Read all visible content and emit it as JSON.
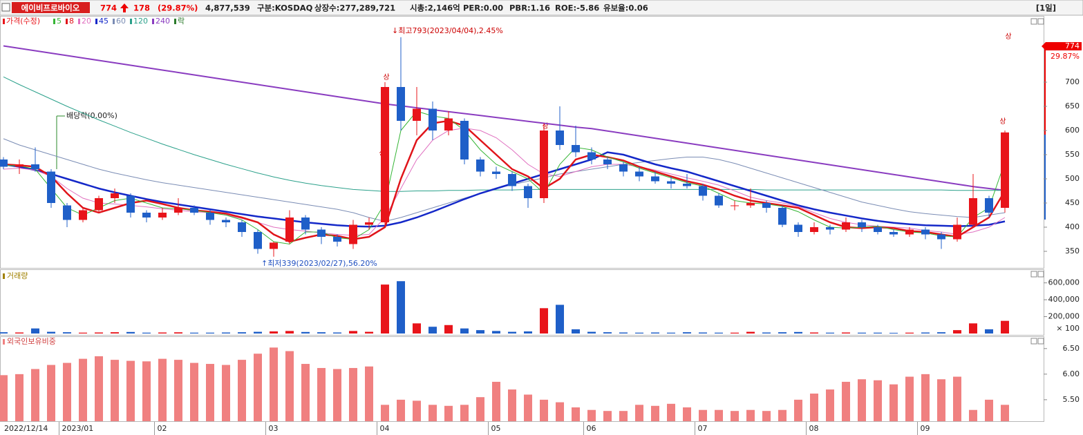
{
  "header": {
    "name": "에이비프로바이오",
    "price": "774",
    "change": "178",
    "change_pct": "(29.87%)",
    "volume": "4,877,539",
    "market": "구분:KOSDAQ",
    "shares": "상장수:277,289,721",
    "market_cap": "시총:2,146억",
    "per": "PER:0.00",
    "pbr": "PBR:1.16",
    "roe": "ROE:-5.86",
    "reserve": "유보율:0.06",
    "period": "[1일]"
  },
  "chart_data": [
    {
      "type": "candlestick",
      "legend_title": "가격(수정)",
      "ex_dividend_label": "락",
      "up_color": "#e8141a",
      "down_color": "#1f5fc8",
      "open": [
        540,
        525,
        530,
        515,
        445,
        415,
        435,
        460,
        465,
        430,
        420,
        430,
        440,
        430,
        415,
        410,
        390,
        355,
        370,
        420,
        395,
        380,
        365,
        405,
        410,
        690,
        620,
        645,
        600,
        620,
        540,
        515,
        510,
        485,
        460,
        600,
        570,
        555,
        540,
        530,
        515,
        505,
        495,
        490,
        485,
        465,
        445,
        445,
        450,
        440,
        405,
        390,
        400,
        395,
        410,
        400,
        390,
        385,
        395,
        385,
        375,
        405,
        460,
        440
      ],
      "high": [
        545,
        540,
        565,
        520,
        450,
        440,
        465,
        480,
        470,
        435,
        440,
        460,
        445,
        435,
        420,
        415,
        395,
        370,
        435,
        425,
        400,
        385,
        415,
        420,
        700,
        793,
        690,
        660,
        640,
        625,
        545,
        525,
        515,
        490,
        615,
        650,
        610,
        565,
        545,
        535,
        525,
        515,
        505,
        510,
        490,
        470,
        455,
        480,
        455,
        445,
        410,
        410,
        405,
        420,
        415,
        405,
        395,
        400,
        400,
        390,
        420,
        510,
        465,
        600
      ],
      "low": [
        520,
        510,
        515,
        440,
        400,
        410,
        430,
        450,
        420,
        410,
        415,
        425,
        425,
        405,
        400,
        380,
        345,
        339,
        365,
        385,
        365,
        360,
        355,
        395,
        405,
        600,
        590,
        580,
        590,
        530,
        505,
        500,
        475,
        440,
        450,
        560,
        545,
        530,
        520,
        505,
        495,
        490,
        480,
        480,
        455,
        440,
        435,
        440,
        430,
        400,
        380,
        385,
        385,
        390,
        390,
        385,
        380,
        380,
        375,
        355,
        370,
        400,
        420,
        430
      ],
      "close": [
        525,
        530,
        520,
        450,
        415,
        435,
        460,
        470,
        430,
        420,
        430,
        440,
        430,
        415,
        410,
        390,
        355,
        368,
        420,
        395,
        380,
        370,
        405,
        410,
        690,
        620,
        645,
        600,
        625,
        540,
        515,
        510,
        485,
        460,
        600,
        570,
        555,
        540,
        530,
        515,
        505,
        495,
        490,
        485,
        465,
        445,
        445,
        450,
        440,
        405,
        390,
        400,
        395,
        410,
        400,
        390,
        385,
        395,
        385,
        375,
        405,
        460,
        430,
        596
      ],
      "series": [
        {
          "name": "5",
          "color": "#35b535",
          "width": 1,
          "values": [
            528,
            527,
            520,
            480,
            440,
            425,
            440,
            455,
            460,
            450,
            440,
            438,
            435,
            430,
            425,
            415,
            395,
            370,
            365,
            390,
            390,
            378,
            375,
            395,
            450,
            600,
            640,
            630,
            625,
            600,
            560,
            530,
            515,
            500,
            470,
            530,
            565,
            560,
            545,
            535,
            522,
            512,
            502,
            492,
            485,
            470,
            455,
            450,
            448,
            443,
            432,
            415,
            400,
            398,
            400,
            402,
            395,
            390,
            388,
            382,
            380,
            420,
            440,
            535
          ]
        },
        {
          "name": "8",
          "color": "#e0141a",
          "width": 2.5,
          "values": [
            530,
            528,
            525,
            505,
            470,
            440,
            430,
            440,
            450,
            455,
            448,
            440,
            435,
            432,
            428,
            420,
            410,
            385,
            370,
            378,
            385,
            382,
            375,
            380,
            400,
            500,
            580,
            615,
            620,
            610,
            580,
            550,
            520,
            505,
            480,
            500,
            540,
            550,
            545,
            538,
            525,
            515,
            505,
            495,
            488,
            478,
            465,
            455,
            450,
            445,
            440,
            425,
            410,
            400,
            398,
            400,
            398,
            392,
            390,
            385,
            380,
            400,
            420,
            475
          ]
        },
        {
          "name": "20",
          "color": "#e070c0",
          "width": 1,
          "values": [
            520,
            522,
            518,
            505,
            480,
            460,
            450,
            448,
            445,
            442,
            438,
            435,
            432,
            430,
            425,
            418,
            410,
            400,
            395,
            392,
            388,
            385,
            383,
            385,
            420,
            480,
            540,
            580,
            600,
            605,
            600,
            585,
            560,
            530,
            510,
            505,
            515,
            525,
            530,
            530,
            525,
            518,
            510,
            502,
            495,
            487,
            475,
            462,
            455,
            450,
            443,
            430,
            418,
            410,
            405,
            402,
            400,
            398,
            393,
            390,
            385,
            390,
            400,
            420
          ]
        },
        {
          "name": "45",
          "color": "#1428c8",
          "width": 2.5,
          "values": [
            530,
            525,
            518,
            510,
            500,
            490,
            480,
            472,
            465,
            458,
            452,
            447,
            442,
            437,
            432,
            427,
            422,
            418,
            414,
            410,
            407,
            404,
            402,
            401,
            403,
            410,
            420,
            432,
            445,
            458,
            470,
            480,
            490,
            500,
            510,
            520,
            530,
            540,
            555,
            550,
            540,
            530,
            522,
            515,
            505,
            495,
            485,
            475,
            465,
            455,
            445,
            437,
            430,
            424,
            418,
            413,
            409,
            406,
            404,
            403,
            402,
            403,
            405,
            412
          ]
        },
        {
          "name": "60",
          "color": "#7a8cb4",
          "width": 1,
          "values": [
            583,
            570,
            560,
            550,
            540,
            530,
            520,
            512,
            505,
            498,
            492,
            487,
            482,
            477,
            472,
            467,
            462,
            457,
            452,
            447,
            442,
            437,
            430,
            420,
            412,
            420,
            430,
            440,
            450,
            460,
            470,
            480,
            488,
            495,
            502,
            510,
            515,
            520,
            525,
            530,
            534,
            538,
            542,
            545,
            545,
            540,
            532,
            522,
            512,
            502,
            492,
            482,
            472,
            462,
            452,
            445,
            438,
            432,
            428,
            425,
            422,
            420,
            425,
            430
          ]
        },
        {
          "name": "120",
          "color": "#2aa08a",
          "width": 1,
          "values": [
            711,
            695,
            680,
            665,
            650,
            636,
            622,
            609,
            596,
            584,
            572,
            561,
            550,
            540,
            530,
            521,
            512,
            504,
            497,
            491,
            486,
            482,
            478,
            476,
            474,
            474,
            475,
            475,
            476,
            476,
            477,
            477,
            477,
            478,
            478,
            478,
            478,
            478,
            478,
            478,
            478,
            478,
            478,
            478,
            478,
            478,
            478,
            478,
            477,
            477,
            477,
            477,
            477,
            477,
            477,
            477,
            477,
            477,
            477,
            477,
            476,
            476,
            476,
            476
          ]
        },
        {
          "name": "240",
          "color": "#8a3cc0",
          "width": 2,
          "values": [
            775,
            770,
            765,
            760,
            755,
            750,
            745,
            740,
            735,
            730,
            725,
            720,
            715,
            710,
            705,
            700,
            695,
            690,
            685,
            680,
            675,
            670,
            665,
            660,
            655,
            651,
            647,
            643,
            639,
            635,
            631,
            627,
            623,
            619,
            615,
            611,
            607,
            604,
            599,
            594,
            589,
            584,
            579,
            574,
            569,
            564,
            559,
            554,
            549,
            544,
            539,
            534,
            529,
            524,
            519,
            514,
            509,
            504,
            499,
            494,
            489,
            484,
            480,
            476
          ]
        }
      ],
      "ylim": [
        320,
        820
      ],
      "yticks": [
        350,
        400,
        450,
        500,
        550,
        600,
        650,
        700
      ],
      "annotations": [
        "↓최고793(2023/04/04),2.45%",
        "↑최저339(2023/02/27),56.20%",
        "배당락(0.00%)",
        "상",
        "상",
        "상",
        "상",
        "상"
      ],
      "price_tag": "774",
      "price_tag_pct": "29.87%"
    },
    {
      "type": "bar",
      "title": "거래량",
      "unit_label": "× 100",
      "values": [
        15000,
        12000,
        60000,
        20000,
        15000,
        10000,
        12000,
        15000,
        18000,
        10000,
        12000,
        14000,
        10000,
        10000,
        12000,
        15000,
        20000,
        25000,
        30000,
        18000,
        15000,
        12000,
        30000,
        20000,
        580000,
        620000,
        120000,
        80000,
        100000,
        60000,
        40000,
        30000,
        20000,
        25000,
        300000,
        340000,
        50000,
        20000,
        15000,
        12000,
        10000,
        12000,
        10000,
        15000,
        12000,
        10000,
        10000,
        20000,
        12000,
        15000,
        18000,
        12000,
        10000,
        12000,
        10000,
        10000,
        8000,
        10000,
        12000,
        15000,
        40000,
        120000,
        50000,
        150000
      ],
      "ylim": [
        0,
        720000
      ],
      "yticks": [
        {
          "value": 200000,
          "label": "200,000"
        },
        {
          "value": 400000,
          "label": "400,000"
        },
        {
          "value": 600000,
          "label": "600,000"
        }
      ]
    },
    {
      "type": "bar",
      "title": "외국인보유비중",
      "color": "#f08080",
      "values": [
        5.98,
        6.0,
        6.1,
        6.18,
        6.22,
        6.3,
        6.35,
        6.28,
        6.26,
        6.25,
        6.3,
        6.28,
        6.22,
        6.2,
        6.18,
        6.28,
        6.4,
        6.52,
        6.45,
        6.2,
        6.12,
        6.1,
        6.12,
        6.15,
        5.4,
        5.5,
        5.48,
        5.4,
        5.38,
        5.4,
        5.55,
        5.85,
        5.7,
        5.6,
        5.5,
        5.45,
        5.35,
        5.3,
        5.28,
        5.28,
        5.4,
        5.38,
        5.42,
        5.35,
        5.3,
        5.3,
        5.28,
        5.3,
        5.28,
        5.3,
        5.5,
        5.62,
        5.7,
        5.85,
        5.9,
        5.88,
        5.8,
        5.95,
        6.0,
        5.9,
        5.95,
        5.3,
        5.5,
        5.4
      ],
      "categories": [
        "2022/12/14",
        null,
        null,
        null,
        "2023/01",
        null,
        null,
        null,
        null,
        null,
        "02",
        null,
        null,
        null,
        null,
        null,
        null,
        "03",
        null,
        null,
        null,
        null,
        null,
        null,
        "04",
        null,
        null,
        null,
        null,
        null,
        null,
        "05",
        null,
        null,
        null,
        null,
        null,
        "06",
        null,
        null,
        null,
        null,
        null,
        null,
        "07",
        null,
        null,
        null,
        null,
        null,
        null,
        "08",
        null,
        null,
        null,
        null,
        null,
        null,
        "09",
        null,
        null,
        null,
        null,
        null
      ],
      "ylim": [
        5.08,
        6.7
      ],
      "yticks": [
        {
          "value": 5.5,
          "label": "5.50"
        },
        {
          "value": 6.0,
          "label": "6.00"
        },
        {
          "value": 6.5,
          "label": "6.50"
        }
      ]
    }
  ]
}
